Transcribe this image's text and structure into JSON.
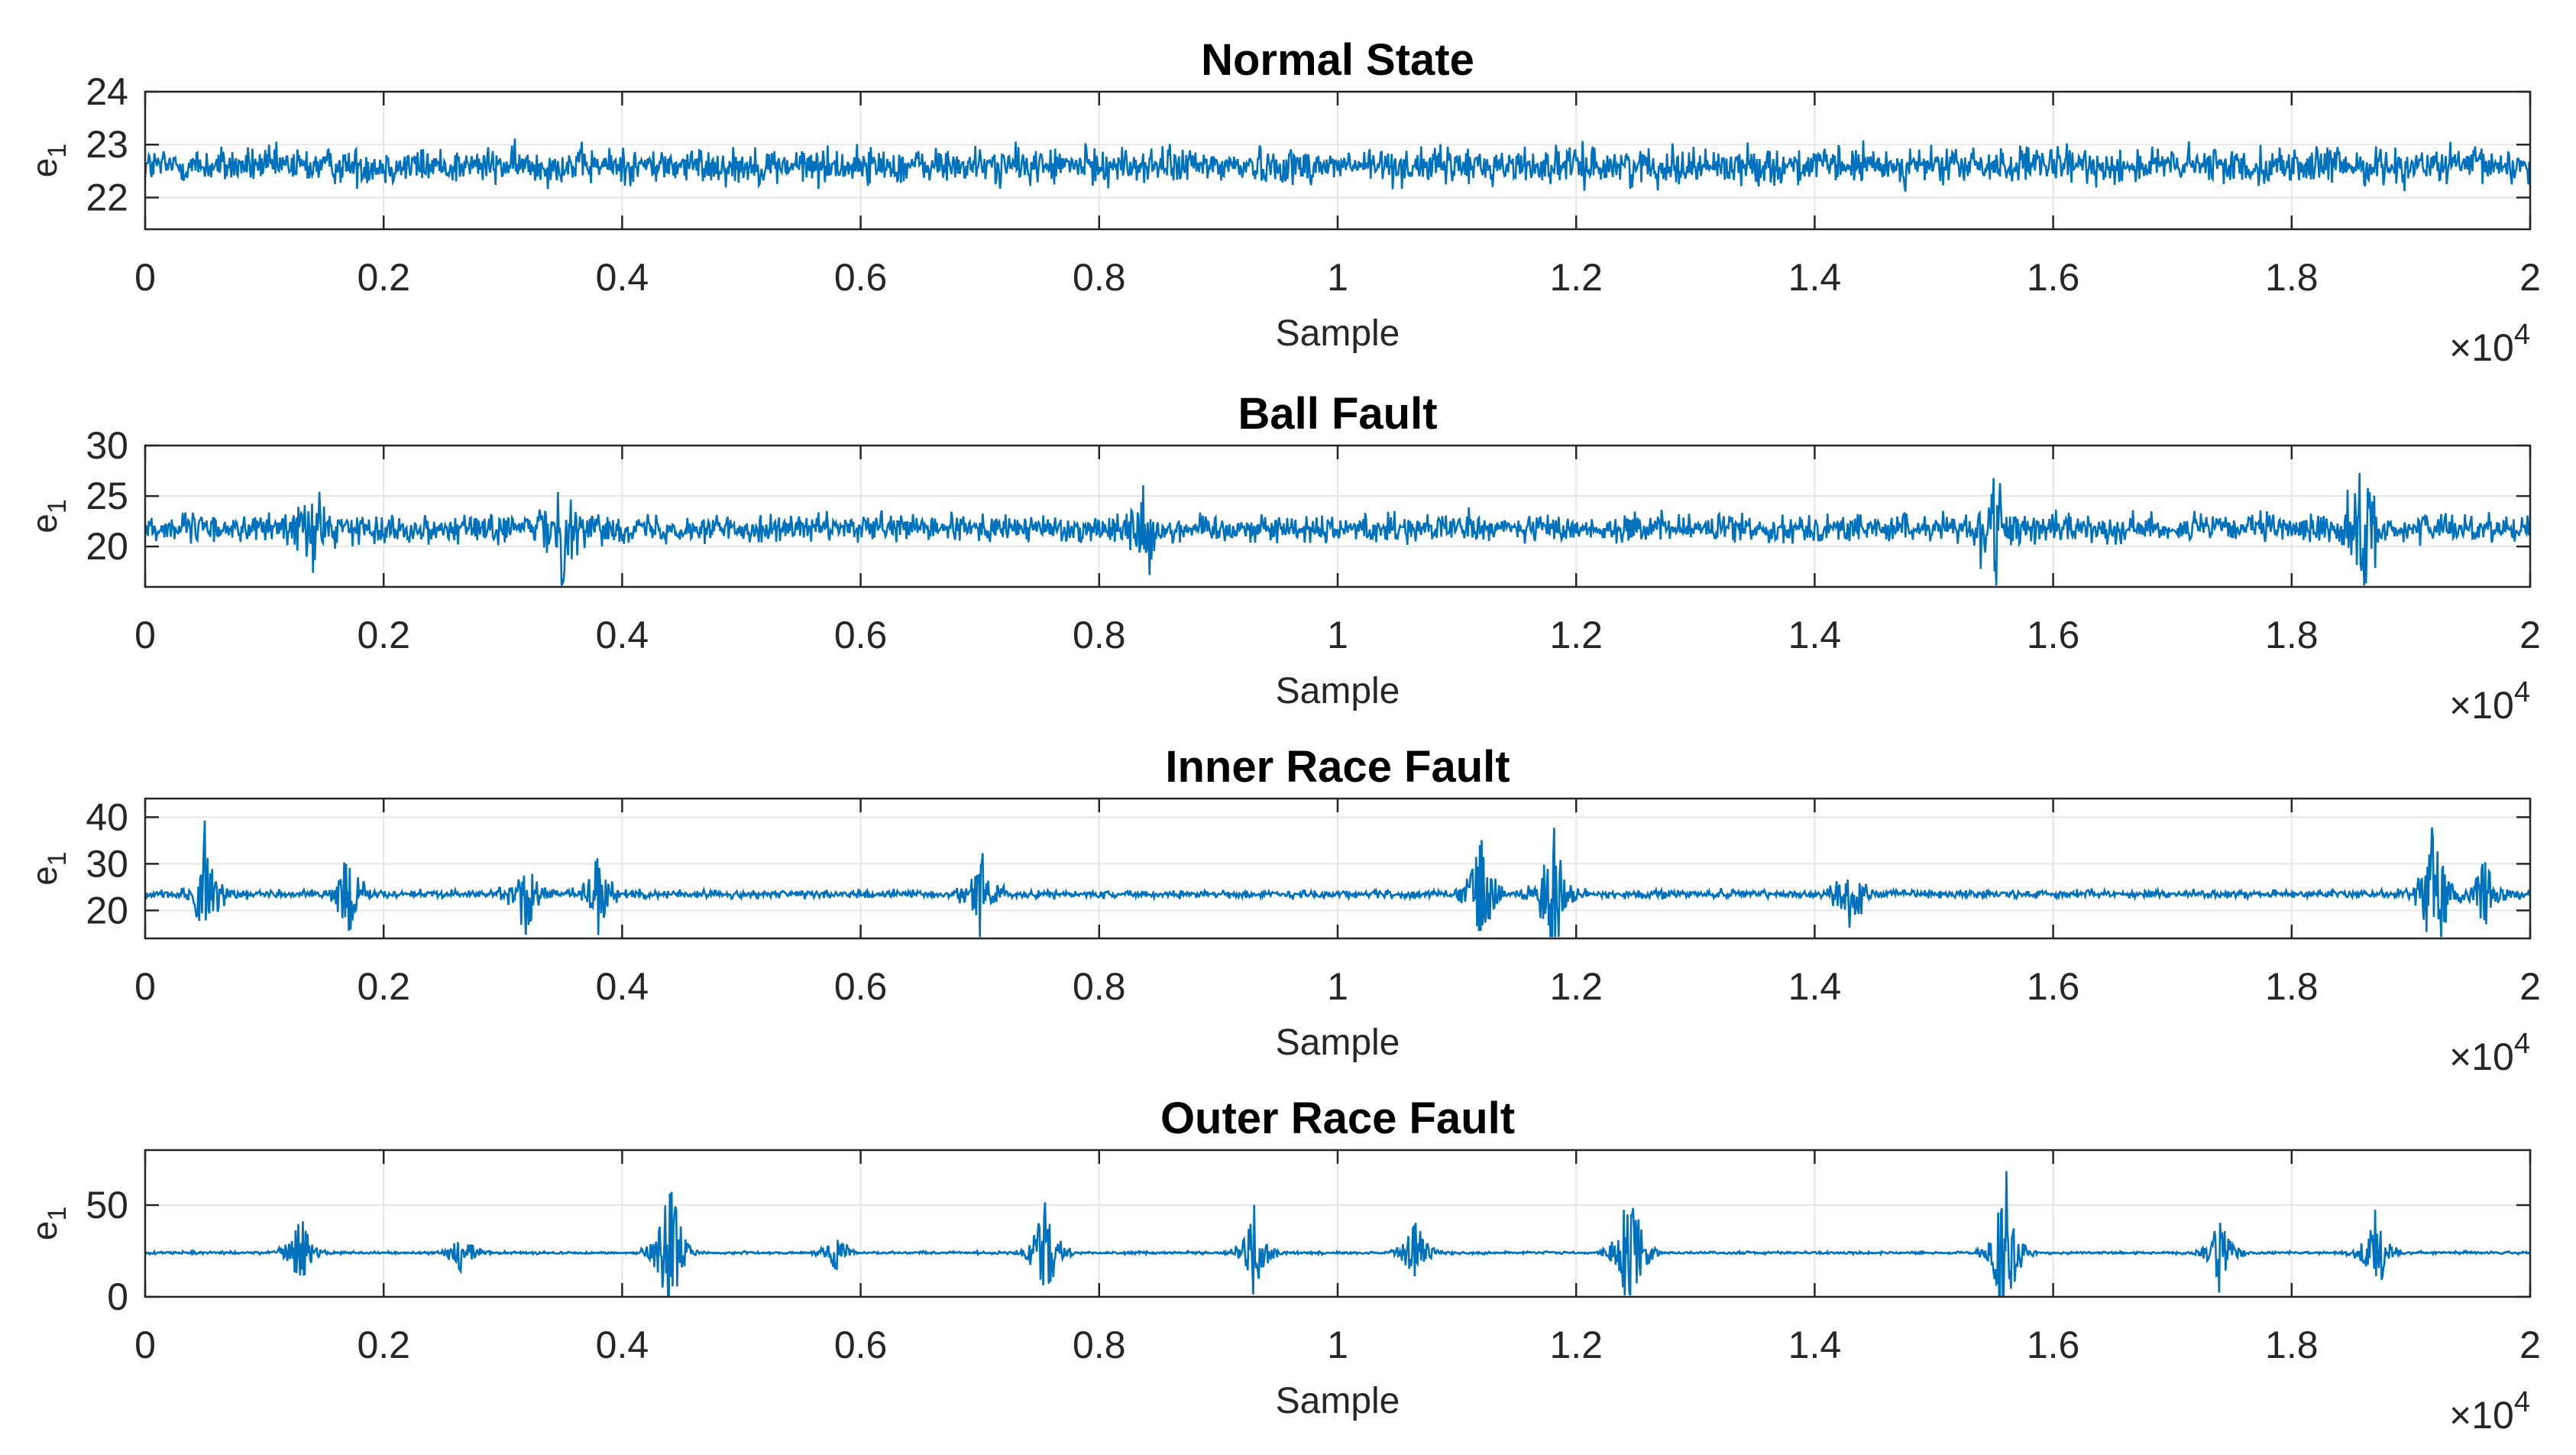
{
  "chart_data": [
    {
      "type": "line",
      "title": "Normal State",
      "xlabel": "Sample",
      "ylabel": "e",
      "ylabel_sub": "1",
      "xlim": [
        0,
        20000
      ],
      "ylim": [
        21.4,
        24
      ],
      "yticks": [
        22,
        23,
        24
      ],
      "xticks": [
        0,
        2000,
        4000,
        6000,
        8000,
        10000,
        12000,
        14000,
        16000,
        18000,
        20000
      ],
      "xtick_labels": [
        "0",
        "0.2",
        "0.4",
        "0.6",
        "0.8",
        "1",
        "1.2",
        "1.4",
        "1.6",
        "1.8",
        "2"
      ],
      "x_multiplier": "×10",
      "x_multiplier_exp": "4",
      "baseline": 22.6,
      "noise_amplitude": 0.4,
      "bursts": [],
      "color": "#0072BD"
    },
    {
      "type": "line",
      "title": "Ball Fault",
      "xlabel": "Sample",
      "ylabel": "e",
      "ylabel_sub": "1",
      "xlim": [
        0,
        20000
      ],
      "ylim": [
        16,
        30
      ],
      "yticks": [
        20,
        25,
        30
      ],
      "xticks": [
        0,
        2000,
        4000,
        6000,
        8000,
        10000,
        12000,
        14000,
        16000,
        18000,
        20000
      ],
      "xtick_labels": [
        "0",
        "0.2",
        "0.4",
        "0.6",
        "0.8",
        "1",
        "1.2",
        "1.4",
        "1.6",
        "1.8",
        "2"
      ],
      "x_multiplier": "×10",
      "x_multiplier_exp": "4",
      "baseline": 21.8,
      "noise_amplitude": 1.6,
      "bursts": [
        [
          1400,
          4
        ],
        [
          3500,
          5
        ],
        [
          8400,
          4
        ],
        [
          15500,
          5.5
        ],
        [
          18600,
          7
        ]
      ],
      "color": "#0072BD"
    },
    {
      "type": "line",
      "title": "Inner Race Fault",
      "xlabel": "Sample",
      "ylabel": "e",
      "ylabel_sub": "1",
      "xlim": [
        0,
        20000
      ],
      "ylim": [
        14,
        44
      ],
      "yticks": [
        20,
        30,
        40
      ],
      "xticks": [
        0,
        2000,
        4000,
        6000,
        8000,
        10000,
        12000,
        14000,
        16000,
        18000,
        20000
      ],
      "xtick_labels": [
        "0",
        "0.2",
        "0.4",
        "0.6",
        "0.8",
        "1",
        "1.2",
        "1.4",
        "1.6",
        "1.8",
        "2"
      ],
      "x_multiplier": "×10",
      "x_multiplier_exp": "4",
      "baseline": 23.5,
      "noise_amplitude": 1.0,
      "bursts": [
        [
          500,
          14
        ],
        [
          1700,
          10
        ],
        [
          3200,
          11
        ],
        [
          3800,
          9
        ],
        [
          7000,
          10
        ],
        [
          11200,
          15
        ],
        [
          11800,
          20
        ],
        [
          14300,
          10
        ],
        [
          19200,
          20
        ],
        [
          19600,
          10
        ]
      ],
      "color": "#0072BD"
    },
    {
      "type": "line",
      "title": "Outer Race Fault",
      "xlabel": "Sample",
      "ylabel": "e",
      "ylabel_sub": "1",
      "xlim": [
        0,
        20000
      ],
      "ylim": [
        0,
        80
      ],
      "yticks": [
        0,
        50
      ],
      "xticks": [
        0,
        2000,
        4000,
        6000,
        8000,
        10000,
        12000,
        14000,
        16000,
        18000,
        20000
      ],
      "xtick_labels": [
        "0",
        "0.2",
        "0.4",
        "0.6",
        "0.8",
        "1",
        "1.2",
        "1.4",
        "1.6",
        "1.8",
        "2"
      ],
      "x_multiplier": "×10",
      "x_multiplier_exp": "4",
      "baseline": 24,
      "noise_amplitude": 0.8,
      "bursts": [
        [
          1300,
          24
        ],
        [
          2650,
          16
        ],
        [
          4400,
          52
        ],
        [
          5800,
          12
        ],
        [
          7550,
          38
        ],
        [
          9300,
          30
        ],
        [
          10650,
          22
        ],
        [
          12450,
          50
        ],
        [
          15600,
          54
        ],
        [
          17400,
          24
        ],
        [
          18700,
          30
        ]
      ],
      "color": "#0072BD"
    }
  ]
}
